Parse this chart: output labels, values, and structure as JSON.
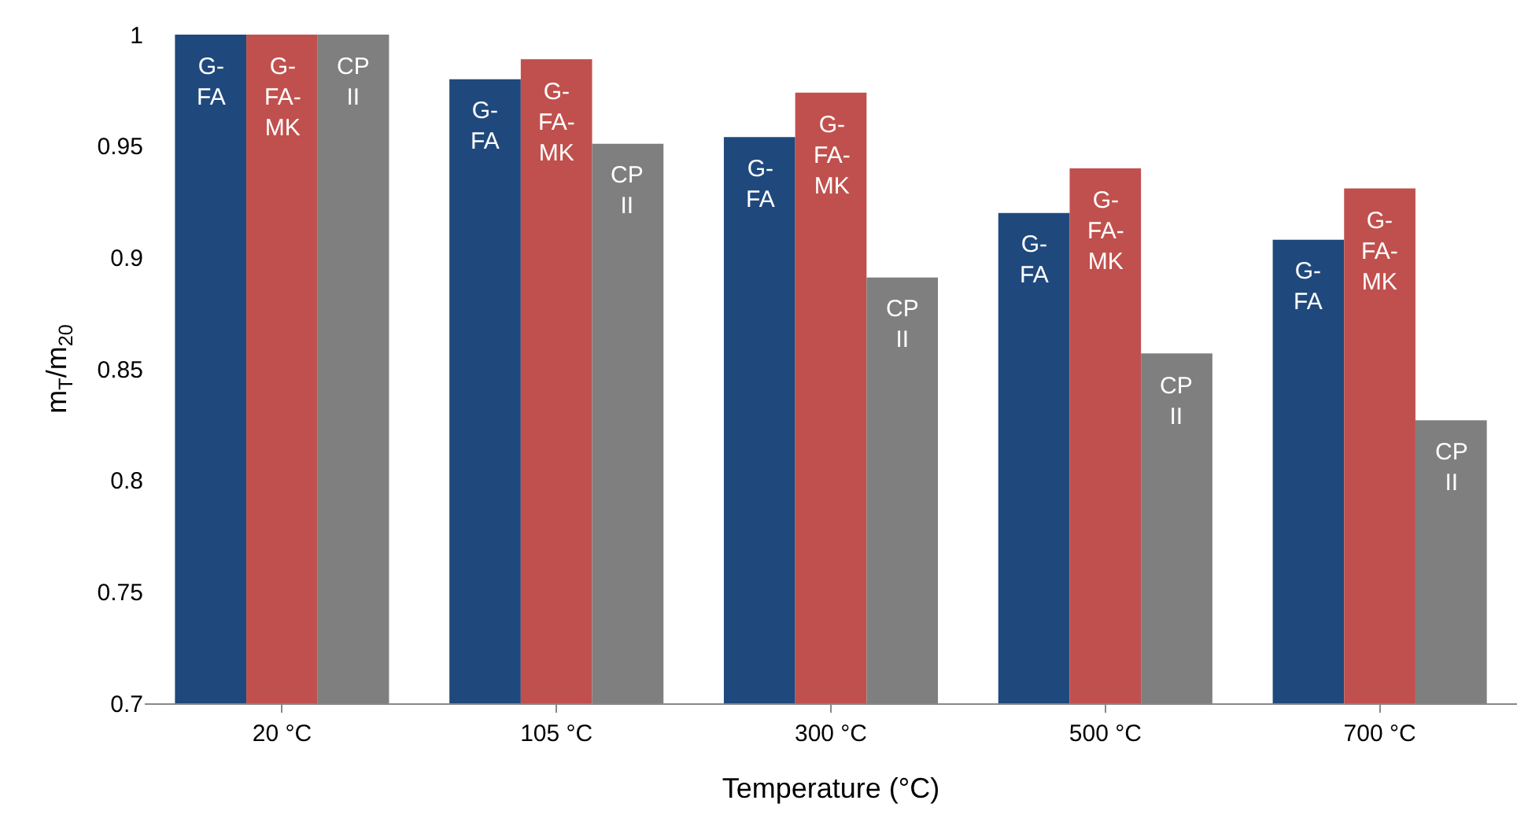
{
  "chart_data": {
    "type": "bar",
    "xlabel": "Temperature (°C)",
    "ylabel": "m$_{T}$/m$_{20}$",
    "categories": [
      "20 °C",
      "105 °C",
      "300 °C",
      "500 °C",
      "700 °C"
    ],
    "series": [
      {
        "name": "G-FA",
        "color": "#1f497d",
        "values": [
          1,
          0.98,
          0.954,
          0.92,
          0.908
        ]
      },
      {
        "name": "G-FA-MK",
        "color": "#c0504d",
        "values": [
          1,
          0.989,
          0.974,
          0.94,
          0.931
        ]
      },
      {
        "name": "CP II",
        "color": "#7f7f7f",
        "values": [
          1,
          0.951,
          0.891,
          0.857,
          0.827
        ]
      }
    ],
    "ylim": [
      0.7,
      1
    ],
    "yticks": [
      0.7,
      0.75,
      0.8,
      0.85,
      0.9,
      0.95,
      1
    ],
    "grid": false,
    "legend": false
  }
}
